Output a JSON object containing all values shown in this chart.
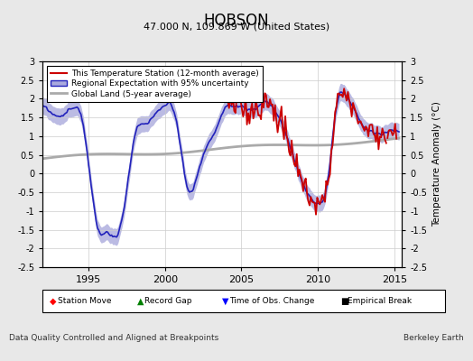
{
  "title": "HOBSON",
  "subtitle": "47.000 N, 109.869 W (United States)",
  "ylabel": "Temperature Anomaly (°C)",
  "xlabel_note": "Data Quality Controlled and Aligned at Breakpoints",
  "credit": "Berkeley Earth",
  "ylim": [
    -2.5,
    3.0
  ],
  "xlim": [
    1992.0,
    2015.5
  ],
  "yticks": [
    -2.5,
    -2,
    -1.5,
    -1,
    -0.5,
    0,
    0.5,
    1,
    1.5,
    2,
    2.5,
    3
  ],
  "xticks": [
    1995,
    2000,
    2005,
    2010,
    2015
  ],
  "bg_color": "#e8e8e8",
  "plot_bg_color": "#ffffff",
  "line_station_color": "#cc0000",
  "line_regional_color": "#2222bb",
  "line_regional_fill": "#aaaadd",
  "line_global_color": "#aaaaaa",
  "seed": 7
}
